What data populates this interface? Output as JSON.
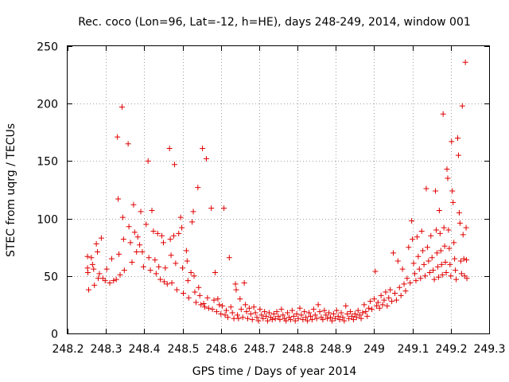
{
  "chart_data": {
    "type": "scatter",
    "title": "Rec. coco (Lon=96, Lat=-12, h=HE), days 248-249, 2014, window 001",
    "xlabel": "GPS time / Days of year 2014",
    "ylabel": "STEC from uqrg / TECUs",
    "xlim": [
      248.2,
      249.3
    ],
    "ylim": [
      0,
      250
    ],
    "xticks": [
      "248.2",
      "248.3",
      "248.4",
      "248.5",
      "248.6",
      "248.7",
      "248.8",
      "248.9",
      "249",
      "249.1",
      "249.2",
      "249.3"
    ],
    "yticks": [
      "0",
      "50",
      "100",
      "150",
      "200",
      "250"
    ],
    "grid": true,
    "marker": "+",
    "colors": {
      "points": "#e00000",
      "axes": "#000000",
      "grid": "#a0a0a0"
    },
    "points": [
      [
        248.252,
        67
      ],
      [
        248.252,
        57
      ],
      [
        248.253,
        53
      ],
      [
        248.255,
        38
      ],
      [
        248.262,
        66
      ],
      [
        248.265,
        60
      ],
      [
        248.268,
        56
      ],
      [
        248.27,
        42
      ],
      [
        248.275,
        78
      ],
      [
        248.278,
        71
      ],
      [
        248.28,
        48
      ],
      [
        248.283,
        52
      ],
      [
        248.288,
        83
      ],
      [
        248.292,
        48
      ],
      [
        248.298,
        46
      ],
      [
        248.302,
        56
      ],
      [
        248.31,
        44
      ],
      [
        248.315,
        65
      ],
      [
        248.32,
        46
      ],
      [
        248.327,
        47
      ],
      [
        248.33,
        171
      ],
      [
        248.332,
        117
      ],
      [
        248.334,
        69
      ],
      [
        248.337,
        51
      ],
      [
        248.342,
        197
      ],
      [
        248.344,
        101
      ],
      [
        248.346,
        82
      ],
      [
        248.348,
        55
      ],
      [
        248.358,
        165
      ],
      [
        248.36,
        93
      ],
      [
        248.364,
        79
      ],
      [
        248.368,
        62
      ],
      [
        248.372,
        112
      ],
      [
        248.375,
        88
      ],
      [
        248.38,
        71
      ],
      [
        248.383,
        84
      ],
      [
        248.388,
        77
      ],
      [
        248.391,
        106
      ],
      [
        248.395,
        71
      ],
      [
        248.398,
        58
      ],
      [
        248.405,
        95
      ],
      [
        248.41,
        150
      ],
      [
        248.412,
        66
      ],
      [
        248.416,
        55
      ],
      [
        248.42,
        107
      ],
      [
        248.424,
        89
      ],
      [
        248.428,
        64
      ],
      [
        248.431,
        52
      ],
      [
        248.435,
        87
      ],
      [
        248.438,
        58
      ],
      [
        248.442,
        47
      ],
      [
        248.446,
        85
      ],
      [
        248.45,
        79
      ],
      [
        248.452,
        45
      ],
      [
        248.455,
        57
      ],
      [
        248.46,
        43
      ],
      [
        248.466,
        161
      ],
      [
        248.468,
        82
      ],
      [
        248.47,
        68
      ],
      [
        248.472,
        44
      ],
      [
        248.477,
        85
      ],
      [
        248.479,
        147
      ],
      [
        248.482,
        61
      ],
      [
        248.485,
        38
      ],
      [
        248.49,
        87
      ],
      [
        248.495,
        101
      ],
      [
        248.498,
        92
      ],
      [
        248.5,
        57
      ],
      [
        248.502,
        35
      ],
      [
        248.51,
        72
      ],
      [
        248.512,
        63
      ],
      [
        248.514,
        46
      ],
      [
        248.516,
        31
      ],
      [
        248.522,
        53
      ],
      [
        248.525,
        97
      ],
      [
        248.528,
        106
      ],
      [
        248.53,
        50
      ],
      [
        248.532,
        36
      ],
      [
        248.535,
        27
      ],
      [
        248.54,
        127
      ],
      [
        248.542,
        40
      ],
      [
        248.545,
        33
      ],
      [
        248.548,
        25
      ],
      [
        248.552,
        161
      ],
      [
        248.555,
        26
      ],
      [
        248.558,
        23
      ],
      [
        248.562,
        152
      ],
      [
        248.565,
        31
      ],
      [
        248.568,
        22
      ],
      [
        248.575,
        109
      ],
      [
        248.578,
        21
      ],
      [
        248.582,
        29
      ],
      [
        248.585,
        53
      ],
      [
        248.589,
        19
      ],
      [
        248.592,
        30
      ],
      [
        248.596,
        25
      ],
      [
        248.6,
        17
      ],
      [
        248.604,
        24
      ],
      [
        248.608,
        109
      ],
      [
        248.611,
        16
      ],
      [
        248.614,
        20
      ],
      [
        248.618,
        14
      ],
      [
        248.622,
        66
      ],
      [
        248.626,
        23
      ],
      [
        248.63,
        18
      ],
      [
        248.634,
        13
      ],
      [
        248.638,
        43
      ],
      [
        248.64,
        38
      ],
      [
        248.643,
        16
      ],
      [
        248.646,
        13
      ],
      [
        248.65,
        30
      ],
      [
        248.653,
        21
      ],
      [
        248.657,
        14
      ],
      [
        248.661,
        44
      ],
      [
        248.664,
        25
      ],
      [
        248.667,
        19
      ],
      [
        248.67,
        13
      ],
      [
        248.674,
        22
      ],
      [
        248.678,
        17
      ],
      [
        248.682,
        12
      ],
      [
        248.686,
        23
      ],
      [
        248.69,
        18
      ],
      [
        248.694,
        14
      ],
      [
        248.698,
        11
      ],
      [
        248.702,
        21
      ],
      [
        248.706,
        16
      ],
      [
        248.71,
        13
      ],
      [
        248.714,
        19
      ],
      [
        248.718,
        15
      ],
      [
        248.722,
        11
      ],
      [
        248.726,
        18
      ],
      [
        248.73,
        14
      ],
      [
        248.734,
        12
      ],
      [
        248.738,
        17
      ],
      [
        248.742,
        13
      ],
      [
        248.746,
        19
      ],
      [
        248.75,
        15
      ],
      [
        248.754,
        12
      ],
      [
        248.758,
        21
      ],
      [
        248.762,
        16
      ],
      [
        248.766,
        13
      ],
      [
        248.77,
        11
      ],
      [
        248.774,
        18
      ],
      [
        248.778,
        14
      ],
      [
        248.782,
        12
      ],
      [
        248.786,
        20
      ],
      [
        248.79,
        15
      ],
      [
        248.794,
        11
      ],
      [
        248.798,
        17
      ],
      [
        248.802,
        13
      ],
      [
        248.806,
        22
      ],
      [
        248.81,
        16
      ],
      [
        248.814,
        12
      ],
      [
        248.818,
        19
      ],
      [
        248.822,
        14
      ],
      [
        248.826,
        11
      ],
      [
        248.83,
        18
      ],
      [
        248.834,
        15
      ],
      [
        248.838,
        12
      ],
      [
        248.842,
        21
      ],
      [
        248.846,
        16
      ],
      [
        248.85,
        13
      ],
      [
        248.854,
        25
      ],
      [
        248.858,
        19
      ],
      [
        248.862,
        14
      ],
      [
        248.866,
        12
      ],
      [
        248.87,
        20
      ],
      [
        248.874,
        16
      ],
      [
        248.878,
        13
      ],
      [
        248.882,
        18
      ],
      [
        248.886,
        14
      ],
      [
        248.89,
        11
      ],
      [
        248.894,
        17
      ],
      [
        248.898,
        13
      ],
      [
        248.902,
        20
      ],
      [
        248.906,
        15
      ],
      [
        248.91,
        12
      ],
      [
        248.914,
        18
      ],
      [
        248.918,
        14
      ],
      [
        248.922,
        11
      ],
      [
        248.926,
        24
      ],
      [
        248.93,
        17
      ],
      [
        248.934,
        13
      ],
      [
        248.938,
        19
      ],
      [
        248.942,
        15
      ],
      [
        248.946,
        12
      ],
      [
        248.95,
        17
      ],
      [
        248.954,
        14
      ],
      [
        248.958,
        20
      ],
      [
        248.962,
        16
      ],
      [
        248.966,
        13
      ],
      [
        248.97,
        18
      ],
      [
        248.974,
        25
      ],
      [
        248.978,
        19
      ],
      [
        248.982,
        15
      ],
      [
        248.986,
        22
      ],
      [
        248.99,
        28
      ],
      [
        248.994,
        21
      ],
      [
        249.0,
        30
      ],
      [
        249.003,
        54
      ],
      [
        249.006,
        24
      ],
      [
        249.01,
        27
      ],
      [
        249.014,
        22
      ],
      [
        249.018,
        33
      ],
      [
        249.022,
        25
      ],
      [
        249.026,
        29
      ],
      [
        249.03,
        36
      ],
      [
        249.034,
        24
      ],
      [
        249.038,
        31
      ],
      [
        249.042,
        38
      ],
      [
        249.046,
        28
      ],
      [
        249.05,
        70
      ],
      [
        249.054,
        35
      ],
      [
        249.058,
        29
      ],
      [
        249.062,
        63
      ],
      [
        249.066,
        40
      ],
      [
        249.07,
        33
      ],
      [
        249.074,
        56
      ],
      [
        249.078,
        43
      ],
      [
        249.082,
        37
      ],
      [
        249.086,
        48
      ],
      [
        249.09,
        75
      ],
      [
        249.094,
        44
      ],
      [
        249.098,
        98
      ],
      [
        249.1,
        82
      ],
      [
        249.103,
        61
      ],
      [
        249.106,
        52
      ],
      [
        249.109,
        46
      ],
      [
        249.112,
        84
      ],
      [
        249.115,
        67
      ],
      [
        249.118,
        56
      ],
      [
        249.121,
        48
      ],
      [
        249.124,
        89
      ],
      [
        249.127,
        72
      ],
      [
        249.13,
        60
      ],
      [
        249.133,
        50
      ],
      [
        249.136,
        126
      ],
      [
        249.139,
        75
      ],
      [
        249.142,
        63
      ],
      [
        249.145,
        53
      ],
      [
        249.148,
        85
      ],
      [
        249.151,
        66
      ],
      [
        249.154,
        55
      ],
      [
        249.157,
        47
      ],
      [
        249.16,
        124
      ],
      [
        249.162,
        90
      ],
      [
        249.164,
        70
      ],
      [
        249.166,
        58
      ],
      [
        249.168,
        49
      ],
      [
        249.17,
        107
      ],
      [
        249.172,
        87
      ],
      [
        249.174,
        72
      ],
      [
        249.176,
        60
      ],
      [
        249.178,
        51
      ],
      [
        249.18,
        191
      ],
      [
        249.182,
        92
      ],
      [
        249.184,
        76
      ],
      [
        249.186,
        62
      ],
      [
        249.188,
        53
      ],
      [
        249.19,
        143
      ],
      [
        249.192,
        135
      ],
      [
        249.194,
        90
      ],
      [
        249.196,
        74
      ],
      [
        249.198,
        60
      ],
      [
        249.2,
        50
      ],
      [
        249.202,
        167
      ],
      [
        249.204,
        124
      ],
      [
        249.206,
        114
      ],
      [
        249.208,
        79
      ],
      [
        249.21,
        65
      ],
      [
        249.212,
        55
      ],
      [
        249.214,
        47
      ],
      [
        249.218,
        170
      ],
      [
        249.22,
        155
      ],
      [
        249.222,
        105
      ],
      [
        249.224,
        96
      ],
      [
        249.226,
        63
      ],
      [
        249.228,
        52
      ],
      [
        249.23,
        198
      ],
      [
        249.232,
        86
      ],
      [
        249.234,
        65
      ],
      [
        249.236,
        50
      ],
      [
        249.238,
        236
      ],
      [
        249.24,
        92
      ],
      [
        249.241,
        64
      ],
      [
        249.242,
        48
      ]
    ]
  }
}
